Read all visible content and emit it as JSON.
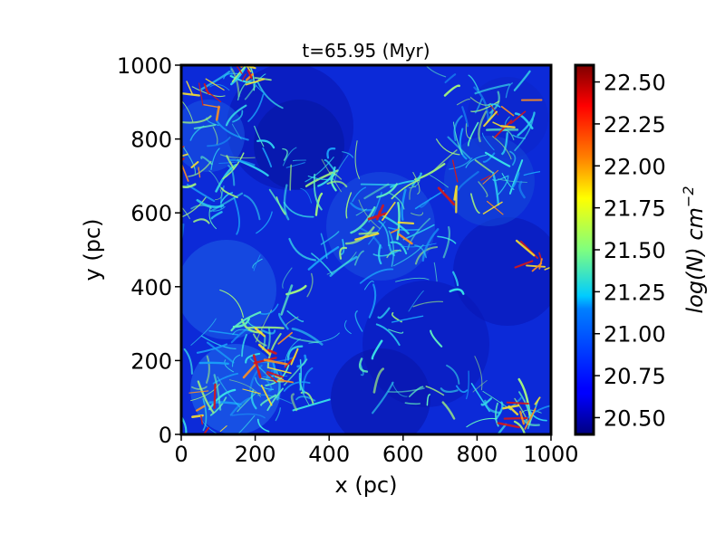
{
  "chart_data": {
    "type": "heatmap",
    "title": "t=65.95 (Myr)",
    "xlabel": "x (pc)",
    "ylabel": "y (pc)",
    "xlim": [
      0,
      1000
    ],
    "ylim": [
      0,
      1000
    ],
    "xticks": [
      "0",
      "200",
      "400",
      "600",
      "800",
      "1000"
    ],
    "yticks": [
      "0",
      "200",
      "400",
      "600",
      "800",
      "1000"
    ],
    "colorbar": {
      "label": "log(N) cm",
      "label_exponent": "−2",
      "range": [
        20.4,
        22.6
      ],
      "ticks": [
        "20.50",
        "20.75",
        "21.00",
        "21.25",
        "21.50",
        "21.75",
        "22.00",
        "22.25",
        "22.50"
      ],
      "colormap": "jet"
    },
    "grid": false,
    "colors": {
      "background_low": "#0a1fd6",
      "mid": "#2ed0f0",
      "high": "#f0e020",
      "peak": "#d01010"
    }
  }
}
